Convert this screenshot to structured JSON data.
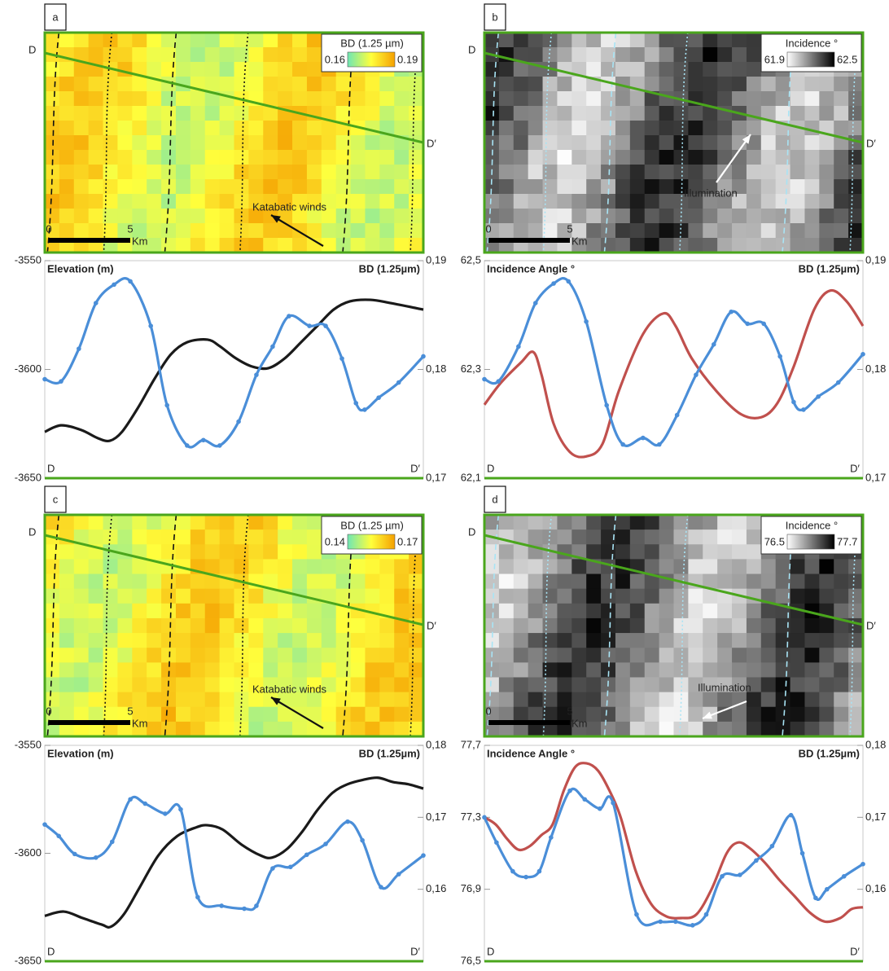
{
  "maps": [
    {
      "label": "a",
      "colorbar_title": "BD (1.25 µm)",
      "colorbar_range": [
        0.16,
        0.19
      ],
      "colorbar_colors": [
        "#6fe6b4",
        "#ffff3c",
        "#f5a000"
      ],
      "start_label": "D",
      "end_label": "D′",
      "annotation": "Katabatic winds",
      "scale_ticks": [
        0,
        5
      ],
      "scale_unit": "Km"
    },
    {
      "label": "b",
      "colorbar_title": "Incidence °",
      "colorbar_range": [
        61.9,
        62.5
      ],
      "colorbar_colors": [
        "#ffffff",
        "#000000"
      ],
      "start_label": "D",
      "end_label": "D′",
      "annotation": "Illumination",
      "scale_ticks": [
        0,
        5
      ],
      "scale_unit": "Km"
    },
    {
      "label": "c",
      "colorbar_title": "BD (1.25 µm)",
      "colorbar_range": [
        0.14,
        0.17
      ],
      "colorbar_colors": [
        "#6fe6b4",
        "#ffff3c",
        "#f5a000"
      ],
      "start_label": "D",
      "end_label": "D′",
      "annotation": "Katabatic winds",
      "scale_ticks": [
        0,
        5
      ],
      "scale_unit": "Km"
    },
    {
      "label": "d",
      "colorbar_title": "Incidence °",
      "colorbar_range": [
        76.5,
        77.7
      ],
      "colorbar_colors": [
        "#ffffff",
        "#000000"
      ],
      "start_label": "D",
      "end_label": "D′",
      "annotation": "Illumination",
      "scale_ticks": [
        0,
        5
      ],
      "scale_unit": "Km"
    }
  ],
  "chart_data": [
    {
      "type": "line",
      "start_label": "D",
      "end_label": "D′",
      "xlim": [
        0,
        100
      ],
      "ylim": [
        -3650,
        -3550
      ],
      "yticks": [
        -3550,
        -3600,
        -3650
      ],
      "y2lim": [
        0.17,
        0.19
      ],
      "y2ticks": [
        {
          "value": 0.19,
          "label": "0,19"
        },
        {
          "value": 0.18,
          "label": "0,18"
        },
        {
          "value": 0.17,
          "label": "0,17"
        }
      ],
      "series": [
        {
          "name": "Elevation (m)",
          "color": "#1a1a1a",
          "axis": "y",
          "markers": false,
          "x": [
            0,
            4.3,
            9.7,
            14,
            17.2,
            20.4,
            24.7,
            29,
            33.3,
            37.6,
            43,
            46.2,
            50.5,
            54.8,
            59.1,
            63.4,
            67.7,
            72,
            76.3,
            80.6,
            86,
            91.4,
            100
          ],
          "values": [
            -3628.7,
            -3625.7,
            -3627.9,
            -3631.6,
            -3632.8,
            -3628.7,
            -3617.4,
            -3604.3,
            -3593.1,
            -3587.5,
            -3586.3,
            -3589.3,
            -3594.9,
            -3598.7,
            -3599.4,
            -3594.9,
            -3587.5,
            -3580,
            -3572.5,
            -3568.7,
            -3568,
            -3569.5,
            -3572.5
          ]
        },
        {
          "name": "BD (1.25µm)",
          "color": "#4a8ed8",
          "axis": "y2",
          "markers": true,
          "x": [
            0,
            4.3,
            9,
            13.5,
            18.3,
            22.6,
            28,
            32.3,
            37.6,
            41.9,
            46.2,
            51.2,
            55.9,
            60.2,
            64.5,
            69.9,
            74.2,
            78.5,
            82.2,
            84.5,
            88.2,
            93.5,
            100
          ],
          "values": [
            0.1791,
            0.1789,
            0.1819,
            0.1861,
            0.1878,
            0.1881,
            0.184,
            0.1767,
            0.173,
            0.1735,
            0.173,
            0.1752,
            0.1795,
            0.1821,
            0.1849,
            0.184,
            0.184,
            0.181,
            0.1769,
            0.1763,
            0.1774,
            0.1788,
            0.1812
          ]
        }
      ]
    },
    {
      "type": "line",
      "start_label": "D",
      "end_label": "D′",
      "xlim": [
        0,
        100
      ],
      "ylim": [
        62.1,
        62.5
      ],
      "yticks": [
        {
          "value": 62.5,
          "label": "62,5"
        },
        {
          "value": 62.3,
          "label": "62,3"
        },
        {
          "value": 62.1,
          "label": "62,1"
        }
      ],
      "y2lim": [
        0.17,
        0.19
      ],
      "y2ticks": [
        {
          "value": 0.19,
          "label": "0,19"
        },
        {
          "value": 0.18,
          "label": "0,18"
        },
        {
          "value": 0.17,
          "label": "0,17"
        }
      ],
      "series": [
        {
          "name": "Incidence Angle °",
          "color": "#c0504d",
          "axis": "y",
          "markers": false,
          "x": [
            0,
            4.3,
            9.7,
            12.9,
            15.1,
            18.3,
            22.6,
            26.9,
            31.2,
            35.5,
            41.9,
            47.3,
            50.5,
            54.8,
            61.3,
            67.7,
            73.1,
            77.4,
            81.7,
            87.1,
            91.4,
            95.7,
            100
          ],
          "values": [
            62.235,
            62.275,
            62.313,
            62.332,
            62.29,
            62.2,
            62.148,
            62.14,
            62.163,
            62.26,
            62.365,
            62.403,
            62.38,
            62.32,
            62.26,
            62.218,
            62.212,
            62.238,
            62.305,
            62.41,
            62.445,
            62.425,
            62.38
          ]
        },
        {
          "name": "BD (1.25µm)",
          "color": "#4a8ed8",
          "axis": "y2",
          "markers": true,
          "x": [
            0,
            3.7,
            9,
            13.5,
            18.3,
            22.2,
            26.9,
            32.3,
            36.6,
            41.9,
            46.2,
            50.9,
            55.9,
            60.6,
            65.2,
            69.5,
            73.8,
            78.1,
            81.7,
            84.3,
            88.2,
            93.5,
            100
          ],
          "values": [
            0.1791,
            0.1789,
            0.1821,
            0.1861,
            0.1879,
            0.1881,
            0.1844,
            0.1767,
            0.1731,
            0.1737,
            0.1731,
            0.1758,
            0.1795,
            0.1823,
            0.1853,
            0.1842,
            0.1842,
            0.1812,
            0.177,
            0.1763,
            0.1775,
            0.1788,
            0.1814
          ]
        }
      ]
    },
    {
      "type": "line",
      "start_label": "D",
      "end_label": "D′",
      "xlim": [
        0,
        100
      ],
      "ylim": [
        -3650,
        -3550
      ],
      "yticks": [
        -3550,
        -3600,
        -3650
      ],
      "y2lim": [
        0.15,
        0.18
      ],
      "y2ticks": [
        {
          "value": 0.18,
          "label": "0,18"
        },
        {
          "value": 0.17,
          "label": "0,17"
        },
        {
          "value": 0.16,
          "label": "0,16"
        }
      ],
      "series": [
        {
          "name": "Elevation (m)",
          "color": "#1a1a1a",
          "axis": "y",
          "markers": false,
          "x": [
            0,
            5,
            10,
            15,
            17.5,
            21,
            25,
            30,
            35,
            40,
            43,
            47,
            52,
            57,
            60,
            64,
            68,
            72,
            76,
            80,
            84,
            88,
            92,
            96,
            100
          ],
          "values": [
            -3629,
            -3627,
            -3630,
            -3633,
            -3634,
            -3628,
            -3616,
            -3601,
            -3592,
            -3588,
            -3587,
            -3589,
            -3596,
            -3601,
            -3602,
            -3598,
            -3590,
            -3580,
            -3572,
            -3568,
            -3566,
            -3565,
            -3567,
            -3568,
            -3570
          ]
        },
        {
          "name": "BD (1.25µm)",
          "color": "#4a8ed8",
          "axis": "y2",
          "markers": true,
          "x": [
            0,
            3.7,
            7.9,
            13.5,
            17.8,
            22.6,
            26.5,
            31.8,
            35.9,
            40.4,
            46.7,
            52.7,
            55.9,
            60.2,
            64.9,
            69.2,
            74.2,
            80,
            83.9,
            88.8,
            93.5,
            100
          ],
          "values": [
            0.169,
            0.1674,
            0.1649,
            0.1644,
            0.1666,
            0.1725,
            0.1719,
            0.1705,
            0.1711,
            0.1589,
            0.1577,
            0.1573,
            0.1577,
            0.1629,
            0.1631,
            0.1648,
            0.1663,
            0.1694,
            0.1668,
            0.1603,
            0.1621,
            0.1647
          ]
        }
      ]
    },
    {
      "type": "line",
      "start_label": "D",
      "end_label": "D′",
      "xlim": [
        0,
        100
      ],
      "ylim": [
        76.5,
        77.7
      ],
      "yticks": [
        {
          "value": 77.7,
          "label": "77,7"
        },
        {
          "value": 77.3,
          "label": "77,3"
        },
        {
          "value": 76.9,
          "label": "76,9"
        },
        {
          "value": 76.5,
          "label": "76,5"
        }
      ],
      "y2lim": [
        0.15,
        0.18
      ],
      "y2ticks": [
        {
          "value": 0.18,
          "label": "0,18"
        },
        {
          "value": 0.17,
          "label": "0,17"
        },
        {
          "value": 0.16,
          "label": "0,16"
        }
      ],
      "series": [
        {
          "name": "Incidence Angle °",
          "color": "#c0504d",
          "axis": "y",
          "markers": false,
          "x": [
            0,
            3,
            6,
            9,
            12,
            15,
            18,
            21,
            24,
            27,
            30,
            33,
            36,
            40,
            44,
            48,
            52,
            56,
            60,
            64,
            67,
            70,
            74,
            78,
            82,
            86,
            90,
            94,
            97,
            100
          ],
          "values": [
            77.3,
            77.26,
            77.18,
            77.12,
            77.14,
            77.2,
            77.26,
            77.45,
            77.58,
            77.6,
            77.56,
            77.45,
            77.3,
            77,
            76.82,
            76.75,
            76.74,
            76.76,
            76.9,
            77.1,
            77.16,
            77.13,
            77.05,
            76.95,
            76.86,
            76.77,
            76.72,
            76.74,
            76.79,
            76.8
          ]
        },
        {
          "name": "BD (1.25µm)",
          "color": "#4a8ed8",
          "axis": "y2",
          "markers": true,
          "x": [
            0,
            3.2,
            7.5,
            11,
            14.5,
            17.6,
            22.6,
            26.5,
            30.5,
            34,
            40.2,
            46.5,
            50.5,
            55,
            58.6,
            62.8,
            67.5,
            71.8,
            76,
            81,
            84,
            87.5,
            90.5,
            95,
            100
          ],
          "values": [
            0.17,
            0.1665,
            0.1625,
            0.1617,
            0.1625,
            0.1672,
            0.1737,
            0.1725,
            0.1712,
            0.172,
            0.1565,
            0.1555,
            0.1555,
            0.155,
            0.1565,
            0.1618,
            0.162,
            0.164,
            0.166,
            0.1703,
            0.165,
            0.1588,
            0.16,
            0.1618,
            0.1635
          ]
        }
      ]
    }
  ]
}
